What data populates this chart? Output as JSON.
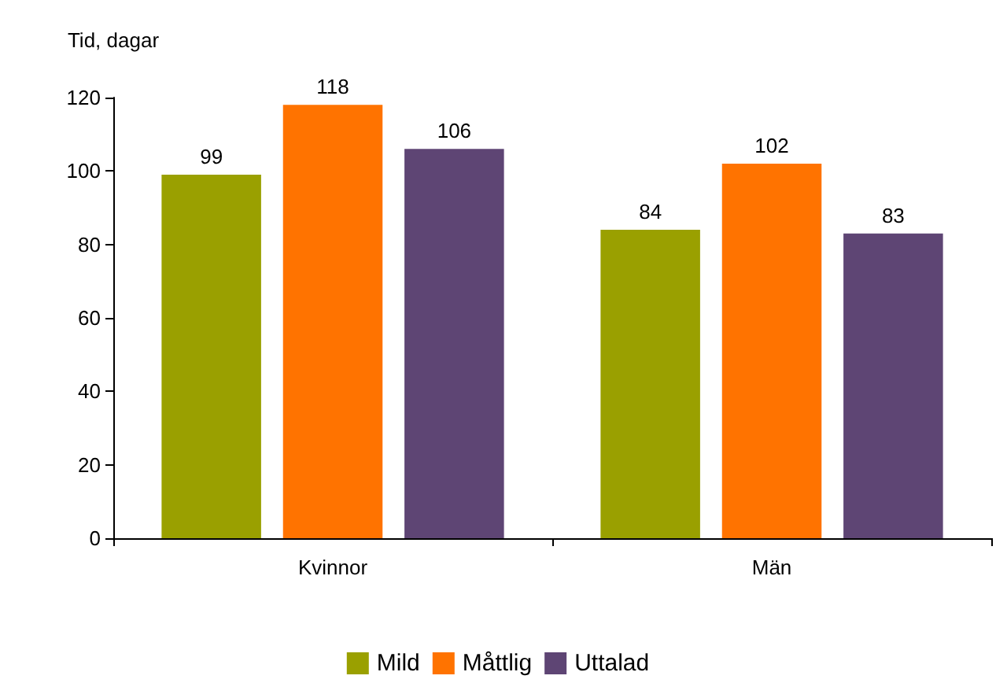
{
  "chart_data": {
    "type": "bar",
    "ylabel": "Tid, dagar",
    "categories": [
      "Kvinnor",
      "Män"
    ],
    "series": [
      {
        "name": "Mild",
        "color": "#9aa000",
        "values": [
          99,
          84
        ]
      },
      {
        "name": "Måttlig",
        "color": "#ff7300",
        "values": [
          118,
          102
        ]
      },
      {
        "name": "Uttalad",
        "color": "#5e4574",
        "values": [
          106,
          83
        ]
      }
    ],
    "ylim": [
      0,
      120
    ],
    "yticks": [
      0,
      20,
      40,
      60,
      80,
      100,
      120
    ],
    "data_labels": true,
    "grid": false,
    "legend": "bottom"
  }
}
